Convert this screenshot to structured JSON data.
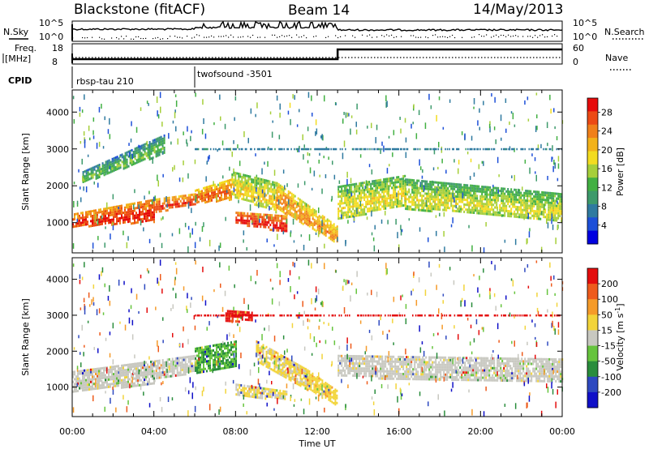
{
  "header": {
    "station": "Blackstone (fitACF)",
    "beam": "Beam 14",
    "date": "14/May/2013"
  },
  "strip_labels": {
    "nsky": "N.Sky",
    "nsearch": "N.Search",
    "freq_line1": "Freq.",
    "freq_line2": "[MHz]",
    "nave": "Nave",
    "cpid": "CPID",
    "noise_ticks": [
      "10^5",
      "10^0"
    ],
    "freq_ticks": [
      "18",
      "8"
    ],
    "nave_ticks": [
      "60",
      "0"
    ]
  },
  "cpid_programs": [
    {
      "name": "rbsp-tau 210",
      "start_hour": 0,
      "end_hour": 6
    },
    {
      "name": "twofsound -3501",
      "start_hour": 6,
      "end_hour": 24
    }
  ],
  "colors": {
    "power": [
      "#0000e0",
      "#1d4fd8",
      "#2f7aa0",
      "#3d9a6b",
      "#42b042",
      "#a6cf3a",
      "#f3dc20",
      "#f2b21a",
      "#f0801a",
      "#ec4a14",
      "#e60b0b"
    ],
    "velocity": [
      "#1010c8",
      "#2e49c0",
      "#2a8d3c",
      "#66c43d",
      "#c8c8c0",
      "#f2d43a",
      "#f59b2a",
      "#ee5b1c",
      "#e40d0d"
    ]
  },
  "chart_data": [
    {
      "type": "heatmap",
      "name": "power",
      "xlabel": "",
      "ylabel": "Slant Range [km]",
      "xlim": [
        0,
        24
      ],
      "ylim": [
        180,
        4600
      ],
      "yticks": [
        1000,
        2000,
        3000,
        4000
      ],
      "colorbar": {
        "label": "Power [dB]",
        "ticks": [
          4,
          8,
          12,
          16,
          20,
          24,
          28
        ],
        "range": [
          0,
          31
        ]
      },
      "echo_regions": [
        {
          "t0": 0.0,
          "t1": 4.0,
          "r_top0": 1250,
          "r_top1": 1650,
          "r_bot0": 900,
          "r_bot1": 1050,
          "value": 29
        },
        {
          "t0": 4.0,
          "t1": 6.0,
          "r_top0": 1650,
          "r_top1": 1800,
          "r_bot0": 1300,
          "r_bot1": 1500,
          "value": 28
        },
        {
          "t0": 6.0,
          "t1": 7.8,
          "r_top0": 1900,
          "r_top1": 2200,
          "r_bot0": 1550,
          "r_bot1": 1650,
          "value": 26
        },
        {
          "t0": 7.8,
          "t1": 10.0,
          "r_top0": 2400,
          "r_top1": 2100,
          "r_bot0": 1750,
          "r_bot1": 1300,
          "value": 20
        },
        {
          "t0": 10.0,
          "t1": 13.0,
          "r_top0": 2100,
          "r_top1": 900,
          "r_bot0": 1400,
          "r_bot1": 450,
          "value": 24
        },
        {
          "t0": 8.0,
          "t1": 10.5,
          "r_top0": 1300,
          "r_top1": 1200,
          "r_bot0": 1000,
          "r_bot1": 750,
          "value": 30
        },
        {
          "t0": 0.5,
          "t1": 4.5,
          "r_top0": 2400,
          "r_top1": 3400,
          "r_bot0": 2100,
          "r_bot1": 2900,
          "value": 14
        },
        {
          "t0": 13.0,
          "t1": 16.3,
          "r_top0": 2000,
          "r_top1": 2300,
          "r_bot0": 1100,
          "r_bot1": 1500,
          "value": 19
        },
        {
          "t0": 16.3,
          "t1": 24.0,
          "r_top0": 2200,
          "r_top1": 1800,
          "r_bot0": 1400,
          "r_bot1": 1050,
          "value": 18
        }
      ]
    },
    {
      "type": "heatmap",
      "name": "velocity",
      "xlabel": "Time UT",
      "ylabel": "Slant Range [km]",
      "xlim": [
        0,
        24
      ],
      "ylim": [
        180,
        4600
      ],
      "yticks": [
        1000,
        2000,
        3000,
        4000
      ],
      "xticks": [
        "00:00",
        "04:00",
        "08:00",
        "12:00",
        "16:00",
        "20:00",
        "00:00"
      ],
      "colorbar": {
        "label": "Velocity [m s^-1]",
        "ticks": [
          200,
          100,
          50,
          15,
          -15,
          -50,
          -100,
          -200
        ],
        "range": [
          -250,
          250
        ]
      },
      "echo_regions": [
        {
          "t0": 0.0,
          "t1": 4.0,
          "r_top0": 1450,
          "r_top1": 1750,
          "r_bot0": 900,
          "r_bot1": 1100,
          "value": 0
        },
        {
          "t0": 4.0,
          "t1": 6.0,
          "r_top0": 1750,
          "r_top1": 1900,
          "r_bot0": 1200,
          "r_bot1": 1450,
          "value": 0
        },
        {
          "t0": 6.0,
          "t1": 8.0,
          "r_top0": 2100,
          "r_top1": 2300,
          "r_bot0": 1400,
          "r_bot1": 1600,
          "value": -80
        },
        {
          "t0": 7.5,
          "t1": 8.8,
          "r_top0": 3150,
          "r_top1": 3100,
          "r_bot0": 2850,
          "r_bot1": 2850,
          "value": 220
        },
        {
          "t0": 9.0,
          "t1": 11.5,
          "r_top0": 2300,
          "r_top1": 1500,
          "r_bot0": 1700,
          "r_bot1": 950,
          "value": 40
        },
        {
          "t0": 11.5,
          "t1": 13.0,
          "r_top0": 1500,
          "r_top1": 900,
          "r_bot0": 950,
          "r_bot1": 500,
          "value": 60
        },
        {
          "t0": 8.0,
          "t1": 10.5,
          "r_top0": 1100,
          "r_top1": 900,
          "r_bot0": 800,
          "r_bot1": 650,
          "value": 35
        },
        {
          "t0": 13.0,
          "t1": 24.0,
          "r_top0": 1900,
          "r_top1": 1800,
          "r_bot0": 1300,
          "r_bot1": 1150,
          "value": 0
        }
      ]
    }
  ]
}
